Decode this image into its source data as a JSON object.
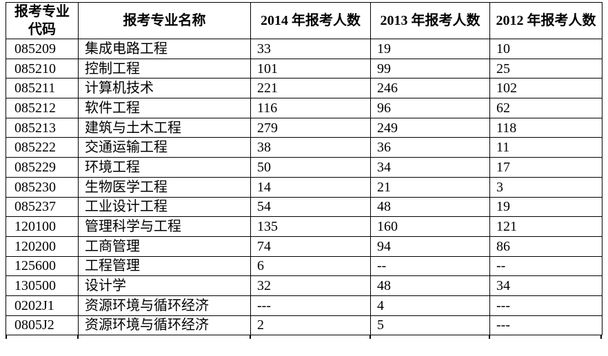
{
  "page": {
    "background_color": "#ffffff",
    "text_color": "#000000",
    "border_color": "#000000"
  },
  "table": {
    "columns": [
      {
        "key": "code",
        "label": "报考专业\n代码"
      },
      {
        "key": "name",
        "label": "报考专业名称"
      },
      {
        "key": "y2014",
        "label": "2014 年报考人数"
      },
      {
        "key": "y2013",
        "label": "2013 年报考人数"
      },
      {
        "key": "y2012",
        "label": "2012 年报考人数"
      }
    ],
    "rows": [
      {
        "code": "085209",
        "name": "集成电路工程",
        "y2014": "33",
        "y2013": "19",
        "y2012": "10"
      },
      {
        "code": "085210",
        "name": "控制工程",
        "y2014": "101",
        "y2013": "99",
        "y2012": "25"
      },
      {
        "code": "085211",
        "name": "计算机技术",
        "y2014": "221",
        "y2013": "246",
        "y2012": "102"
      },
      {
        "code": "085212",
        "name": "软件工程",
        "y2014": "116",
        "y2013": "96",
        "y2012": "62"
      },
      {
        "code": "085213",
        "name": "建筑与土木工程",
        "y2014": "279",
        "y2013": "249",
        "y2012": "118"
      },
      {
        "code": "085222",
        "name": "交通运输工程",
        "y2014": "38",
        "y2013": "36",
        "y2012": "11"
      },
      {
        "code": "085229",
        "name": "环境工程",
        "y2014": "50",
        "y2013": "34",
        "y2012": "17"
      },
      {
        "code": "085230",
        "name": "生物医学工程",
        "y2014": "14",
        "y2013": "21",
        "y2012": "3"
      },
      {
        "code": "085237",
        "name": "工业设计工程",
        "y2014": "54",
        "y2013": "48",
        "y2012": "19"
      },
      {
        "code": "120100",
        "name": "管理科学与工程",
        "y2014": "135",
        "y2013": "160",
        "y2012": "121"
      },
      {
        "code": "120200",
        "name": "工商管理",
        "y2014": "74",
        "y2013": "94",
        "y2012": "86"
      },
      {
        "code": "125600",
        "name": "工程管理",
        "y2014": "6",
        "y2013": "--",
        "y2012": "--"
      },
      {
        "code": "130500",
        "name": "设计学",
        "y2014": "32",
        "y2013": "48",
        "y2012": "34"
      },
      {
        "code": "0202J1",
        "name": "资源环境与循环经济",
        "y2014": "---",
        "y2013": "4",
        "y2012": "---"
      },
      {
        "code": "0805J2",
        "name": "资源环境与循环经济",
        "y2014": "2",
        "y2013": "5",
        "y2012": "---"
      }
    ]
  }
}
